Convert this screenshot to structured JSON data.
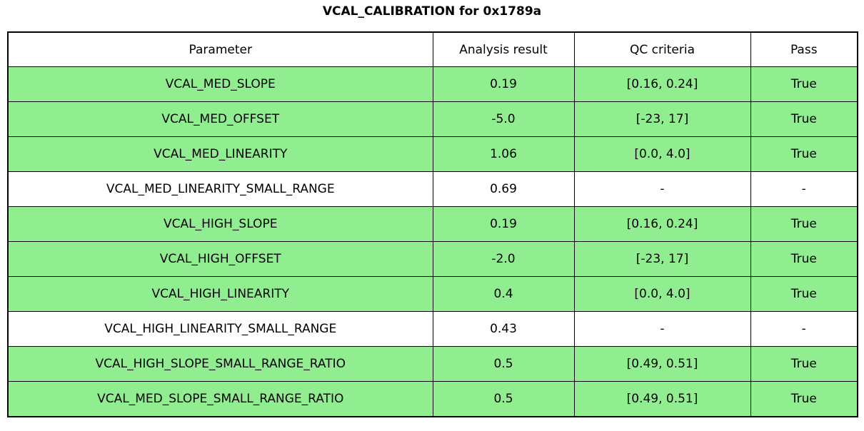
{
  "title": "VCAL_CALIBRATION for 0x1789a",
  "colors": {
    "pass_row_bg": "#90EE90",
    "neutral_row_bg": "#FFFFFF",
    "border": "#000000",
    "text": "#000000"
  },
  "table": {
    "headers": [
      "Parameter",
      "Analysis result",
      "QC criteria",
      "Pass"
    ],
    "rows": [
      {
        "parameter": "VCAL_MED_SLOPE",
        "result": "0.19",
        "criteria": "[0.16, 0.24]",
        "pass": "True",
        "highlight": true
      },
      {
        "parameter": "VCAL_MED_OFFSET",
        "result": "-5.0",
        "criteria": "[-23, 17]",
        "pass": "True",
        "highlight": true
      },
      {
        "parameter": "VCAL_MED_LINEARITY",
        "result": "1.06",
        "criteria": "[0.0, 4.0]",
        "pass": "True",
        "highlight": true
      },
      {
        "parameter": "VCAL_MED_LINEARITY_SMALL_RANGE",
        "result": "0.69",
        "criteria": "-",
        "pass": "-",
        "highlight": false
      },
      {
        "parameter": "VCAL_HIGH_SLOPE",
        "result": "0.19",
        "criteria": "[0.16, 0.24]",
        "pass": "True",
        "highlight": true
      },
      {
        "parameter": "VCAL_HIGH_OFFSET",
        "result": "-2.0",
        "criteria": "[-23, 17]",
        "pass": "True",
        "highlight": true
      },
      {
        "parameter": "VCAL_HIGH_LINEARITY",
        "result": "0.4",
        "criteria": "[0.0, 4.0]",
        "pass": "True",
        "highlight": true
      },
      {
        "parameter": "VCAL_HIGH_LINEARITY_SMALL_RANGE",
        "result": "0.43",
        "criteria": "-",
        "pass": "-",
        "highlight": false
      },
      {
        "parameter": "VCAL_HIGH_SLOPE_SMALL_RANGE_RATIO",
        "result": "0.5",
        "criteria": "[0.49, 0.51]",
        "pass": "True",
        "highlight": true
      },
      {
        "parameter": "VCAL_MED_SLOPE_SMALL_RANGE_RATIO",
        "result": "0.5",
        "criteria": "[0.49, 0.51]",
        "pass": "True",
        "highlight": true
      }
    ]
  },
  "chart_data": {
    "type": "table",
    "title": "VCAL_CALIBRATION for 0x1789a",
    "columns": [
      "Parameter",
      "Analysis result",
      "QC criteria",
      "Pass"
    ],
    "rows": [
      [
        "VCAL_MED_SLOPE",
        0.19,
        "[0.16, 0.24]",
        "True"
      ],
      [
        "VCAL_MED_OFFSET",
        -5.0,
        "[-23, 17]",
        "True"
      ],
      [
        "VCAL_MED_LINEARITY",
        1.06,
        "[0.0, 4.0]",
        "True"
      ],
      [
        "VCAL_MED_LINEARITY_SMALL_RANGE",
        0.69,
        "-",
        "-"
      ],
      [
        "VCAL_HIGH_SLOPE",
        0.19,
        "[0.16, 0.24]",
        "True"
      ],
      [
        "VCAL_HIGH_OFFSET",
        -2.0,
        "[-23, 17]",
        "True"
      ],
      [
        "VCAL_HIGH_LINEARITY",
        0.4,
        "[0.0, 4.0]",
        "True"
      ],
      [
        "VCAL_HIGH_LINEARITY_SMALL_RANGE",
        0.43,
        "-",
        "-"
      ],
      [
        "VCAL_HIGH_SLOPE_SMALL_RANGE_RATIO",
        0.5,
        "[0.49, 0.51]",
        "True"
      ],
      [
        "VCAL_MED_SLOPE_SMALL_RANGE_RATIO",
        0.5,
        "[0.49, 0.51]",
        "True"
      ]
    ],
    "row_highlight_passing": "#90EE90",
    "legend_position": "none",
    "grid": true
  }
}
